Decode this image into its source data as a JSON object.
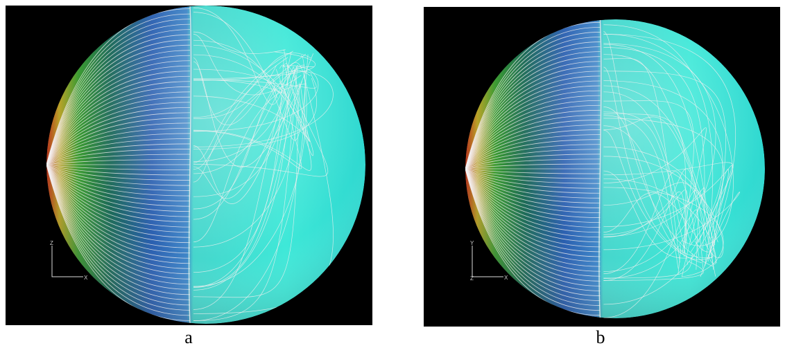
{
  "panels": [
    {
      "label": "a",
      "axes": {
        "vertical": "Z",
        "horizontal": "X"
      }
    },
    {
      "label": "b",
      "axes": {
        "vertical": "Y",
        "horizontal": "X",
        "depth": "Z"
      }
    }
  ]
}
